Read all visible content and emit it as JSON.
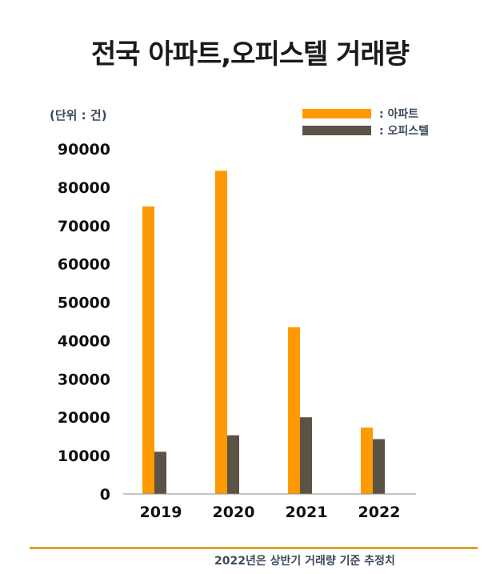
{
  "title": "전국 아파트,오피스텔 거래량",
  "unit_label": "(단위 : 건)",
  "legend": [
    {
      "label": ": 아파트"
    },
    {
      "label": ": 오피스텔"
    }
  ],
  "footnote": "2022년은 상반기 거래량 기준 추정치",
  "colors": {
    "apartment": "#FF9900",
    "officetel": "#5B5346",
    "axis": "#8a8a8a",
    "rule": "#E0A030"
  },
  "chart_data": {
    "type": "bar",
    "title": "전국 아파트,오피스텔 거래량",
    "xlabel": "",
    "ylabel": "(단위 : 건)",
    "categories": [
      "2019",
      "2020",
      "2021",
      "2022"
    ],
    "series": [
      {
        "name": "아파트",
        "values": [
          75000,
          84300,
          43500,
          17300
        ]
      },
      {
        "name": "오피스텔",
        "values": [
          11000,
          15300,
          20000,
          14300
        ]
      }
    ],
    "ylim": [
      0,
      90000
    ],
    "yticks": [
      "0",
      "10000",
      "20000",
      "30000",
      "40000",
      "50000",
      "60000",
      "70000",
      "80000",
      "90000"
    ],
    "grid": false,
    "legend_position": "top-right"
  }
}
